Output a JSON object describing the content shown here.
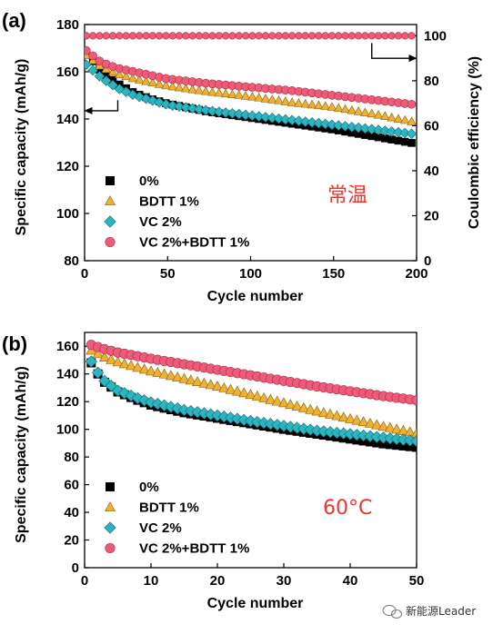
{
  "watermark": "新能源Leader",
  "watermark_icon": "wechat-icon",
  "colors": {
    "s0": "#000000",
    "s1": "#f0b030",
    "s2": "#2ab5c0",
    "s3": "#ee5a78",
    "note": "#e8382d"
  },
  "chart_data": [
    {
      "type": "scatter",
      "panel": "(a)",
      "annotation": "常温",
      "xlabel": "Cycle number",
      "ylabel": "Specific capacity (mAh/g)",
      "y2label": "Coulombic efficiency (%)",
      "xlim": [
        0,
        200
      ],
      "ylim": [
        80,
        180
      ],
      "y2lim": [
        0,
        105
      ],
      "xticks": [
        0,
        50,
        100,
        150,
        200
      ],
      "yticks": [
        80,
        100,
        120,
        140,
        160,
        180
      ],
      "y2ticks": [
        0,
        20,
        40,
        60,
        80,
        100
      ],
      "legend_position": "bottom-left",
      "grid": false,
      "series": [
        {
          "name": "0%",
          "marker": "square",
          "color": "#000000",
          "points": [
            [
              1,
              168
            ],
            [
              10,
              160
            ],
            [
              20,
              155
            ],
            [
              30,
              151
            ],
            [
              40,
              148.5
            ],
            [
              50,
              146.5
            ],
            [
              75,
              143
            ],
            [
              100,
              140.5
            ],
            [
              125,
              138
            ],
            [
              150,
              135.5
            ],
            [
              175,
              132.5
            ],
            [
              200,
              129.5
            ]
          ]
        },
        {
          "name": "BDTT 1%",
          "marker": "triangle",
          "color": "#f0b030",
          "points": [
            [
              1,
              167
            ],
            [
              10,
              162
            ],
            [
              20,
              159
            ],
            [
              30,
              157
            ],
            [
              40,
              155.5
            ],
            [
              50,
              154
            ],
            [
              75,
              151.5
            ],
            [
              100,
              149.5
            ],
            [
              125,
              147
            ],
            [
              150,
              145
            ],
            [
              175,
              142
            ],
            [
              200,
              138.5
            ]
          ]
        },
        {
          "name": "VC 2%",
          "marker": "diamond",
          "color": "#2ab5c0",
          "points": [
            [
              1,
              163
            ],
            [
              10,
              157.5
            ],
            [
              20,
              153
            ],
            [
              30,
              150
            ],
            [
              40,
              148
            ],
            [
              50,
              146
            ],
            [
              75,
              143.5
            ],
            [
              100,
              141.5
            ],
            [
              125,
              139.5
            ],
            [
              150,
              137.5
            ],
            [
              175,
              135.5
            ],
            [
              200,
              133.5
            ]
          ]
        },
        {
          "name": "VC 2%+BDTT 1%",
          "marker": "circle",
          "color": "#ee5a78",
          "points": [
            [
              1,
              169
            ],
            [
              10,
              164
            ],
            [
              20,
              161.5
            ],
            [
              30,
              160
            ],
            [
              40,
              158.5
            ],
            [
              50,
              157
            ],
            [
              75,
              155
            ],
            [
              100,
              153.5
            ],
            [
              125,
              152
            ],
            [
              150,
              150
            ],
            [
              175,
              148
            ],
            [
              200,
              146
            ]
          ]
        }
      ],
      "efficiency": {
        "y2_value": 100,
        "x_range": [
          1,
          200
        ]
      }
    },
    {
      "type": "scatter",
      "panel": "(b)",
      "annotation": "60°C",
      "xlabel": "Cycle number",
      "ylabel": "Specific capacity (mAh/g)",
      "xlim": [
        0,
        50
      ],
      "ylim": [
        0,
        170
      ],
      "xticks": [
        0,
        10,
        20,
        30,
        40,
        50
      ],
      "yticks": [
        0,
        20,
        40,
        60,
        80,
        100,
        120,
        140,
        160
      ],
      "legend_position": "bottom-left",
      "grid": false,
      "series": [
        {
          "name": "0%",
          "marker": "square",
          "color": "#000000",
          "points": [
            [
              1,
              148
            ],
            [
              2,
              140
            ],
            [
              3,
              134
            ],
            [
              5,
              127
            ],
            [
              8,
              121
            ],
            [
              10,
              117.5
            ],
            [
              15,
              112
            ],
            [
              20,
              108
            ],
            [
              25,
              104
            ],
            [
              30,
              100
            ],
            [
              35,
              96.5
            ],
            [
              40,
              93
            ],
            [
              45,
              89.5
            ],
            [
              50,
              87
            ]
          ]
        },
        {
          "name": "BDTT 1%",
          "marker": "triangle",
          "color": "#f0b030",
          "points": [
            [
              1,
              157
            ],
            [
              3,
              152
            ],
            [
              5,
              148.5
            ],
            [
              10,
              142
            ],
            [
              15,
              136.5
            ],
            [
              20,
              131
            ],
            [
              25,
              125
            ],
            [
              30,
              119
            ],
            [
              35,
              113
            ],
            [
              40,
              107.5
            ],
            [
              45,
              102
            ],
            [
              50,
              97
            ]
          ]
        },
        {
          "name": "VC 2%",
          "marker": "diamond",
          "color": "#2ab5c0",
          "points": [
            [
              1,
              149
            ],
            [
              2,
              141
            ],
            [
              3,
              135
            ],
            [
              5,
              128
            ],
            [
              8,
              122.5
            ],
            [
              10,
              119.5
            ],
            [
              15,
              114
            ],
            [
              20,
              110
            ],
            [
              25,
              106
            ],
            [
              30,
              102.5
            ],
            [
              35,
              99
            ],
            [
              40,
              96.5
            ],
            [
              45,
              94
            ],
            [
              50,
              91.5
            ]
          ]
        },
        {
          "name": "VC 2%+BDTT 1%",
          "marker": "circle",
          "color": "#ee5a78",
          "points": [
            [
              1,
              161
            ],
            [
              3,
              158
            ],
            [
              5,
              155.5
            ],
            [
              10,
              151
            ],
            [
              15,
              147
            ],
            [
              20,
              143
            ],
            [
              25,
              139
            ],
            [
              30,
              135
            ],
            [
              35,
              131
            ],
            [
              40,
              127.5
            ],
            [
              45,
              124
            ],
            [
              50,
              121
            ]
          ]
        }
      ]
    }
  ]
}
